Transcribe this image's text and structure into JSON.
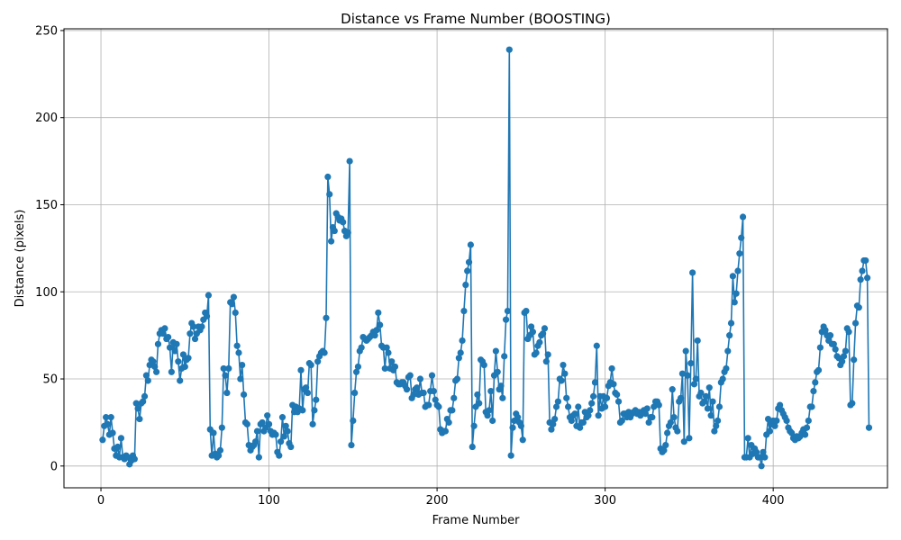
{
  "chart_data": {
    "type": "line",
    "title": "Distance vs Frame Number (BOOSTING)",
    "xlabel": "Frame Number",
    "ylabel": "Distance (pixels)",
    "xlim": [
      -22,
      468
    ],
    "ylim": [
      -12.5,
      251
    ],
    "xticks": [
      0,
      100,
      200,
      300,
      400
    ],
    "yticks": [
      0,
      50,
      100,
      150,
      200,
      250
    ],
    "xtick_labels": [
      "0",
      "100",
      "200",
      "300",
      "400"
    ],
    "ytick_labels": [
      "0",
      "50",
      "100",
      "150",
      "200",
      "250"
    ],
    "grid": true,
    "marker": "circle",
    "color": "#1f77b4",
    "series": [
      {
        "values": [
          15,
          23,
          28,
          24,
          18,
          28,
          19,
          10,
          6,
          11,
          5,
          16,
          5,
          4,
          6,
          5,
          1,
          3,
          6,
          4,
          36,
          33,
          27,
          36,
          37,
          40,
          52,
          49,
          58,
          61,
          60,
          57,
          54,
          70,
          76,
          78,
          76,
          79,
          73,
          74,
          68,
          54,
          71,
          66,
          70,
          60,
          49,
          56,
          64,
          57,
          61,
          62,
          76,
          82,
          80,
          73,
          76,
          80,
          78,
          80,
          84,
          88,
          86,
          98,
          21,
          6,
          19,
          7,
          5,
          6,
          9,
          22,
          56,
          52,
          42,
          56,
          94,
          93,
          97,
          88,
          69,
          65,
          50,
          58,
          41,
          25,
          24,
          12,
          9,
          11,
          12,
          14,
          20,
          5,
          24,
          25,
          20,
          22,
          29,
          24,
          20,
          18,
          19,
          18,
          8,
          6,
          14,
          28,
          17,
          23,
          20,
          13,
          11,
          35,
          31,
          34,
          31,
          33,
          55,
          32,
          44,
          45,
          42,
          59,
          58,
          24,
          32,
          38,
          60,
          63,
          65,
          66,
          65,
          85,
          166,
          156,
          129,
          137,
          135,
          145,
          143,
          141,
          142,
          140,
          135,
          132,
          134,
          175,
          12,
          26,
          42,
          54,
          57,
          66,
          68,
          74,
          73,
          72,
          73,
          74,
          75,
          77,
          75,
          78,
          88,
          81,
          69,
          68,
          56,
          68,
          65,
          56,
          60,
          55,
          57,
          48,
          47,
          47,
          48,
          48,
          46,
          44,
          51,
          52,
          39,
          41,
          44,
          45,
          41,
          50,
          42,
          42,
          34,
          35,
          35,
          43,
          52,
          43,
          38,
          35,
          34,
          21,
          19,
          20,
          20,
          27,
          25,
          32,
          32,
          39,
          49,
          50,
          62,
          65,
          72,
          89,
          104,
          112,
          117,
          127,
          11,
          23,
          34,
          41,
          36,
          61,
          60,
          58,
          31,
          29,
          32,
          43,
          26,
          52,
          66,
          54,
          44,
          46,
          39,
          63,
          84,
          89,
          239,
          6,
          22,
          26,
          30,
          28,
          25,
          23,
          15,
          88,
          89,
          73,
          75,
          80,
          77,
          64,
          65,
          69,
          71,
          75,
          76,
          79,
          60,
          64,
          25,
          21,
          24,
          27,
          34,
          37,
          50,
          49,
          58,
          53,
          39,
          34,
          28,
          26,
          29,
          30,
          23,
          34,
          22,
          25,
          25,
          31,
          28,
          29,
          32,
          36,
          40,
          48,
          69,
          29,
          40,
          33,
          40,
          34,
          39,
          46,
          48,
          56,
          47,
          42,
          41,
          37,
          25,
          26,
          30,
          30,
          28,
          31,
          28,
          30,
          31,
          32,
          30,
          31,
          29,
          31,
          32,
          30,
          33,
          25,
          28,
          28,
          34,
          37,
          37,
          35,
          10,
          8,
          9,
          12,
          19,
          23,
          25,
          44,
          28,
          22,
          20,
          37,
          39,
          53,
          14,
          66,
          52,
          16,
          59,
          111,
          47,
          50,
          72,
          40,
          42,
          36,
          37,
          40,
          33,
          45,
          29,
          37,
          20,
          23,
          26,
          34,
          48,
          50,
          54,
          56,
          66,
          75,
          82,
          109,
          94,
          99,
          112,
          122,
          131,
          143,
          5,
          5,
          16,
          5,
          12,
          7,
          10,
          8,
          5,
          5,
          0,
          8,
          5,
          18,
          27,
          20,
          24,
          26,
          23,
          26,
          33,
          35,
          32,
          30,
          28,
          26,
          22,
          20,
          19,
          16,
          15,
          17,
          16,
          17,
          19,
          21,
          18,
          22,
          26,
          34,
          34,
          43,
          48,
          54,
          55,
          68,
          77,
          80,
          78,
          75,
          72,
          75,
          70,
          70,
          67,
          63,
          62,
          58,
          60,
          63,
          66,
          79,
          77,
          35,
          36,
          61,
          82,
          92,
          91,
          107,
          112,
          118,
          118,
          108,
          22
        ]
      }
    ]
  }
}
